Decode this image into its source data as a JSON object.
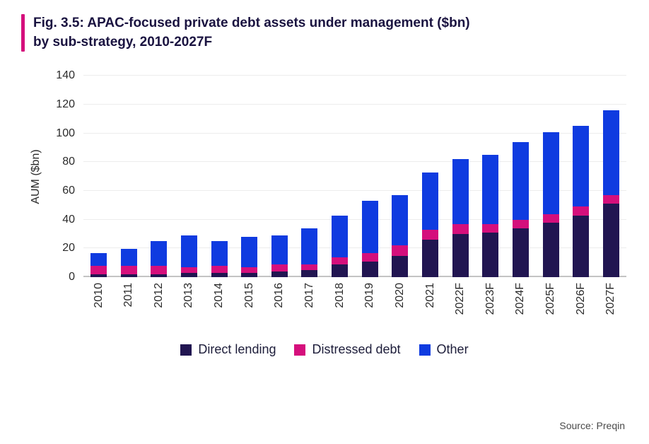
{
  "figure": {
    "title_line1": "Fig. 3.5: APAC-focused private debt assets under management ($bn)",
    "title_line2": "by sub-strategy, 2010-2027F",
    "source": "Source: Preqin"
  },
  "colors": {
    "accent_pink": "#d50f7c",
    "gridline": "#ececec",
    "baseline": "#c4c4c4"
  },
  "chart_data": {
    "type": "bar",
    "stacked": true,
    "title": "APAC-focused private debt assets under management ($bn) by sub-strategy, 2010-2027F",
    "xlabel": "",
    "ylabel": "AUM ($bn)",
    "ylim": [
      0,
      140
    ],
    "ytick_step": 20,
    "grid": true,
    "legend_position": "bottom",
    "categories": [
      "2010",
      "2011",
      "2012",
      "2013",
      "2014",
      "2015",
      "2016",
      "2017",
      "2018",
      "2019",
      "2020",
      "2021",
      "2022F",
      "2023F",
      "2024F",
      "2025F",
      "2026F",
      "2027F"
    ],
    "series": [
      {
        "name": "Direct lending",
        "color": "#211551",
        "values": [
          2,
          2,
          2,
          3,
          3,
          3,
          4,
          5,
          9,
          11,
          15,
          26,
          30,
          31,
          34,
          38,
          43,
          51
        ]
      },
      {
        "name": "Distressed debt",
        "color": "#d50f7c",
        "values": [
          6,
          6,
          6,
          4,
          5,
          4,
          5,
          4,
          5,
          6,
          7,
          7,
          7,
          6,
          6,
          6,
          6,
          6
        ]
      },
      {
        "name": "Other",
        "color": "#0f3be0",
        "values": [
          9,
          12,
          17,
          22,
          17,
          21,
          20,
          25,
          29,
          36,
          35,
          40,
          45,
          48,
          54,
          57,
          56,
          59
        ]
      }
    ]
  }
}
